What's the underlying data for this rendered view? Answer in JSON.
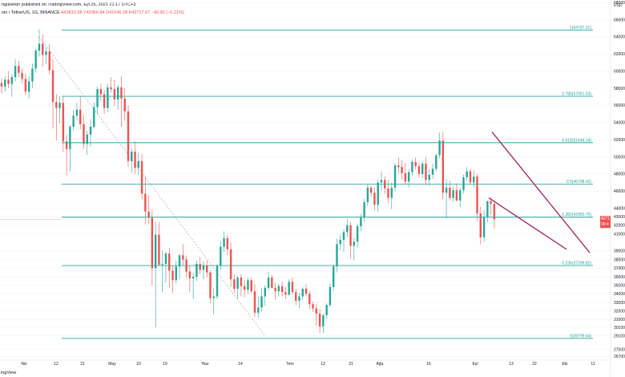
{
  "header": {
    "publisher_line": "ngulsekin published on TradingView.com, Eyl 25, 2021 21:17 UTC+3",
    "symbol_line": "oin / TetherUS, 1G, BINANCE",
    "ohlc": "A43810.58 Y42966.84 D41646.28 K42717.67 −90.90 (−0.21%)"
  },
  "footer": {
    "brand": "ingView"
  },
  "colors": {
    "fib": "#26a69a",
    "up": "#26a69a",
    "down": "#ef5350",
    "wedge": "#a0306a",
    "trend_dash": "#c0a0a0",
    "price_badge": "#ef5350"
  },
  "price_badge": {
    "line1": "4271",
    "line2": "09:4"
  },
  "chart_data": {
    "type": "candlestick",
    "title": "",
    "ylim": [
      25700,
      68300
    ],
    "y_ticks": [
      26700,
      27500,
      29100,
      30100,
      31000,
      32000,
      33000,
      34000,
      35000,
      36000,
      37000,
      38000,
      39000,
      41000,
      42000,
      43000,
      44000,
      46000,
      48000,
      50000,
      52000,
      54000,
      56000,
      58000,
      60000,
      62000,
      64000,
      66000,
      68000
    ],
    "y_axis_label": "USD",
    "x_labels": [
      "Nis",
      "12",
      "21",
      "May",
      "10",
      "19",
      "Haz",
      "14",
      "Tem",
      "12",
      "21",
      "Ağu",
      "16",
      "Eyl",
      "13",
      "22",
      "Eki",
      "11"
    ],
    "fibonacci_levels": [
      {
        "label": "1(64797.21)",
        "price": 64797.21
      },
      {
        "label": "0.786(57061.53)",
        "price": 57061.53
      },
      {
        "label": "0.618(51646.14)",
        "price": 51646.14
      },
      {
        "label": "0.5(46798.42)",
        "price": 46798.42
      },
      {
        "label": "0.382(42950.70)",
        "price": 42950.7
      },
      {
        "label": "0.236(37299.82)",
        "price": 37299.82
      },
      {
        "label": "0(28799.04)",
        "price": 28799.04
      }
    ],
    "wedge_lines": [
      {
        "from": {
          "date": "Eyl 7",
          "price": 52900
        },
        "to": {
          "date": "Eki 2",
          "price": 38800
        }
      },
      {
        "from": {
          "date": "Eyl 6",
          "price": 45200
        },
        "to": {
          "date": "Eyl 30",
          "price": 39200
        }
      }
    ],
    "dashed_trend": {
      "from": {
        "date": "Nis 14",
        "price": 64000
      },
      "to": {
        "date": "Haz 20",
        "price": 29100
      }
    },
    "candles": [
      [
        58600,
        59200,
        57400,
        58200
      ],
      [
        58200,
        59400,
        57600,
        59000
      ],
      [
        59000,
        60000,
        58000,
        58500
      ],
      [
        58500,
        59600,
        57000,
        59300
      ],
      [
        59300,
        61400,
        58800,
        60600
      ],
      [
        60600,
        61200,
        59300,
        59800
      ],
      [
        59800,
        60300,
        58600,
        59100
      ],
      [
        59100,
        59700,
        57200,
        57600
      ],
      [
        57600,
        59400,
        56800,
        58800
      ],
      [
        58800,
        60900,
        58000,
        60300
      ],
      [
        60300,
        62600,
        59800,
        62400
      ],
      [
        62400,
        64900,
        61700,
        63200
      ],
      [
        63200,
        64300,
        60500,
        61900
      ],
      [
        61900,
        62800,
        60800,
        62300
      ],
      [
        62300,
        63200,
        59600,
        60100
      ],
      [
        60100,
        61400,
        53300,
        56400
      ],
      [
        56400,
        57300,
        51900,
        55700
      ],
      [
        55700,
        57100,
        53900,
        56300
      ],
      [
        56300,
        57000,
        50600,
        51800
      ],
      [
        51800,
        52600,
        47800,
        50900
      ],
      [
        50900,
        53700,
        48300,
        53500
      ],
      [
        53500,
        55400,
        53100,
        54800
      ],
      [
        54800,
        56300,
        54300,
        55500
      ],
      [
        55500,
        57100,
        53200,
        53800
      ],
      [
        53800,
        54900,
        50900,
        51500
      ],
      [
        51500,
        53000,
        50200,
        52600
      ],
      [
        52600,
        54400,
        51200,
        53500
      ],
      [
        53500,
        56300,
        53300,
        55800
      ],
      [
        55800,
        58200,
        55000,
        57900
      ],
      [
        57900,
        58500,
        56600,
        57300
      ],
      [
        57300,
        57800,
        55000,
        55700
      ],
      [
        55700,
        58500,
        55200,
        58100
      ],
      [
        58100,
        59300,
        57500,
        57900
      ],
      [
        57900,
        59000,
        55900,
        56700
      ],
      [
        56700,
        58400,
        55500,
        58100
      ],
      [
        58100,
        59400,
        53500,
        56800
      ],
      [
        56800,
        58000,
        54200,
        55300
      ],
      [
        55300,
        56000,
        48800,
        49500
      ],
      [
        49500,
        51000,
        48100,
        50600
      ],
      [
        50600,
        51800,
        48000,
        48700
      ],
      [
        48700,
        50500,
        47900,
        49500
      ],
      [
        49500,
        50300,
        45000,
        45700
      ],
      [
        45700,
        47700,
        42100,
        43600
      ],
      [
        43600,
        45500,
        42200,
        42900
      ],
      [
        42900,
        43800,
        35000,
        37000
      ],
      [
        37000,
        42400,
        30100,
        40900
      ],
      [
        40900,
        42400,
        37300,
        37400
      ],
      [
        37400,
        39100,
        34200,
        37500
      ],
      [
        37500,
        38900,
        35300,
        38700
      ],
      [
        38700,
        39400,
        34700,
        36700
      ],
      [
        36700,
        37300,
        34100,
        35600
      ],
      [
        35600,
        37900,
        35200,
        37200
      ],
      [
        37200,
        38600,
        35700,
        38500
      ],
      [
        38500,
        39800,
        37300,
        38000
      ],
      [
        38000,
        38500,
        35900,
        36600
      ],
      [
        36600,
        37300,
        34200,
        35800
      ],
      [
        35800,
        36500,
        33400,
        36000
      ],
      [
        36000,
        37900,
        35500,
        37500
      ],
      [
        37500,
        38300,
        36300,
        36800
      ],
      [
        36800,
        37800,
        35700,
        37300
      ],
      [
        37300,
        37900,
        35900,
        36500
      ],
      [
        36500,
        36700,
        32900,
        33500
      ],
      [
        33500,
        34700,
        31600,
        33700
      ],
      [
        33700,
        37500,
        33400,
        37300
      ],
      [
        37300,
        40100,
        36800,
        39500
      ],
      [
        39500,
        41300,
        38900,
        40500
      ],
      [
        40500,
        40900,
        38500,
        39200
      ],
      [
        39200,
        40000,
        34800,
        35700
      ],
      [
        35700,
        36300,
        34100,
        34600
      ],
      [
        34600,
        36100,
        33400,
        35900
      ],
      [
        35900,
        36300,
        33700,
        34900
      ],
      [
        34900,
        35600,
        33600,
        34500
      ],
      [
        34500,
        35900,
        33900,
        35600
      ],
      [
        35600,
        35900,
        34100,
        34300
      ],
      [
        34300,
        35100,
        31300,
        31800
      ],
      [
        31800,
        33700,
        31200,
        32400
      ],
      [
        32400,
        34700,
        32000,
        33700
      ],
      [
        33700,
        35000,
        32600,
        34700
      ],
      [
        34700,
        36600,
        34400,
        35900
      ],
      [
        35900,
        36200,
        34600,
        34700
      ],
      [
        34700,
        35300,
        33300,
        34300
      ],
      [
        34300,
        35200,
        33700,
        34900
      ],
      [
        34900,
        35400,
        33700,
        34200
      ],
      [
        34200,
        34800,
        33400,
        33900
      ],
      [
        33900,
        35700,
        33800,
        35400
      ],
      [
        35400,
        35900,
        33900,
        34200
      ],
      [
        34200,
        34600,
        32700,
        33200
      ],
      [
        33200,
        34100,
        32300,
        33700
      ],
      [
        33700,
        34800,
        33300,
        34600
      ],
      [
        34600,
        35100,
        33700,
        34000
      ],
      [
        34000,
        34300,
        32200,
        32800
      ],
      [
        32800,
        33100,
        31900,
        32300
      ],
      [
        32300,
        32800,
        30300,
        31700
      ],
      [
        31700,
        32200,
        29400,
        30200
      ],
      [
        30200,
        31700,
        29400,
        31500
      ],
      [
        31500,
        32900,
        31100,
        32700
      ],
      [
        32700,
        35200,
        32500,
        34800
      ],
      [
        34800,
        37400,
        34300,
        37200
      ],
      [
        37200,
        40400,
        36500,
        39800
      ],
      [
        39800,
        40900,
        39100,
        40300
      ],
      [
        40300,
        41500,
        38900,
        41200
      ],
      [
        41200,
        42700,
        40600,
        42000
      ],
      [
        42000,
        42400,
        38100,
        39600
      ],
      [
        39600,
        40500,
        37900,
        40100
      ],
      [
        40100,
        42200,
        39400,
        41900
      ],
      [
        41900,
        43300,
        41300,
        42900
      ],
      [
        42900,
        45100,
        42400,
        44700
      ],
      [
        44700,
        46800,
        44300,
        46400
      ],
      [
        46400,
        46600,
        45300,
        45800
      ],
      [
        45800,
        46400,
        43700,
        44400
      ],
      [
        44400,
        47300,
        43600,
        47000
      ],
      [
        47000,
        48300,
        46100,
        47300
      ],
      [
        47300,
        47700,
        45700,
        46300
      ],
      [
        46300,
        47300,
        44600,
        45200
      ],
      [
        45200,
        47000,
        43900,
        46400
      ],
      [
        46400,
        49200,
        46000,
        49000
      ],
      [
        49000,
        49900,
        48100,
        48800
      ],
      [
        48800,
        49600,
        47300,
        48100
      ],
      [
        48100,
        49300,
        46800,
        47100
      ],
      [
        47100,
        48600,
        46400,
        48200
      ],
      [
        48200,
        49700,
        47800,
        49400
      ],
      [
        49400,
        49900,
        48500,
        48900
      ],
      [
        48900,
        49300,
        47600,
        48000
      ],
      [
        48000,
        49500,
        47500,
        49200
      ],
      [
        49200,
        50000,
        46700,
        47300
      ],
      [
        47300,
        48500,
        46600,
        47900
      ],
      [
        47900,
        49200,
        47400,
        48600
      ],
      [
        48600,
        50300,
        48300,
        50200
      ],
      [
        50200,
        52800,
        49800,
        51900
      ],
      [
        51900,
        52900,
        45000,
        45800
      ],
      [
        45800,
        47400,
        42800,
        46400
      ],
      [
        46400,
        47200,
        44900,
        45200
      ],
      [
        45200,
        46500,
        44700,
        46100
      ],
      [
        46100,
        46900,
        44800,
        44900
      ],
      [
        44900,
        46400,
        44100,
        46100
      ],
      [
        46100,
        47900,
        45700,
        47600
      ],
      [
        47600,
        48800,
        47200,
        48300
      ],
      [
        48300,
        48600,
        46800,
        47000
      ],
      [
        47000,
        48400,
        46400,
        47700
      ],
      [
        47700,
        48000,
        42500,
        43400
      ],
      [
        43400,
        44200,
        39800,
        40600
      ],
      [
        40600,
        43800,
        40100,
        43000
      ],
      [
        43000,
        44900,
        42400,
        44800
      ],
      [
        44800,
        45200,
        43200,
        44500
      ],
      [
        44500,
        44900,
        41600,
        42700
      ]
    ]
  }
}
